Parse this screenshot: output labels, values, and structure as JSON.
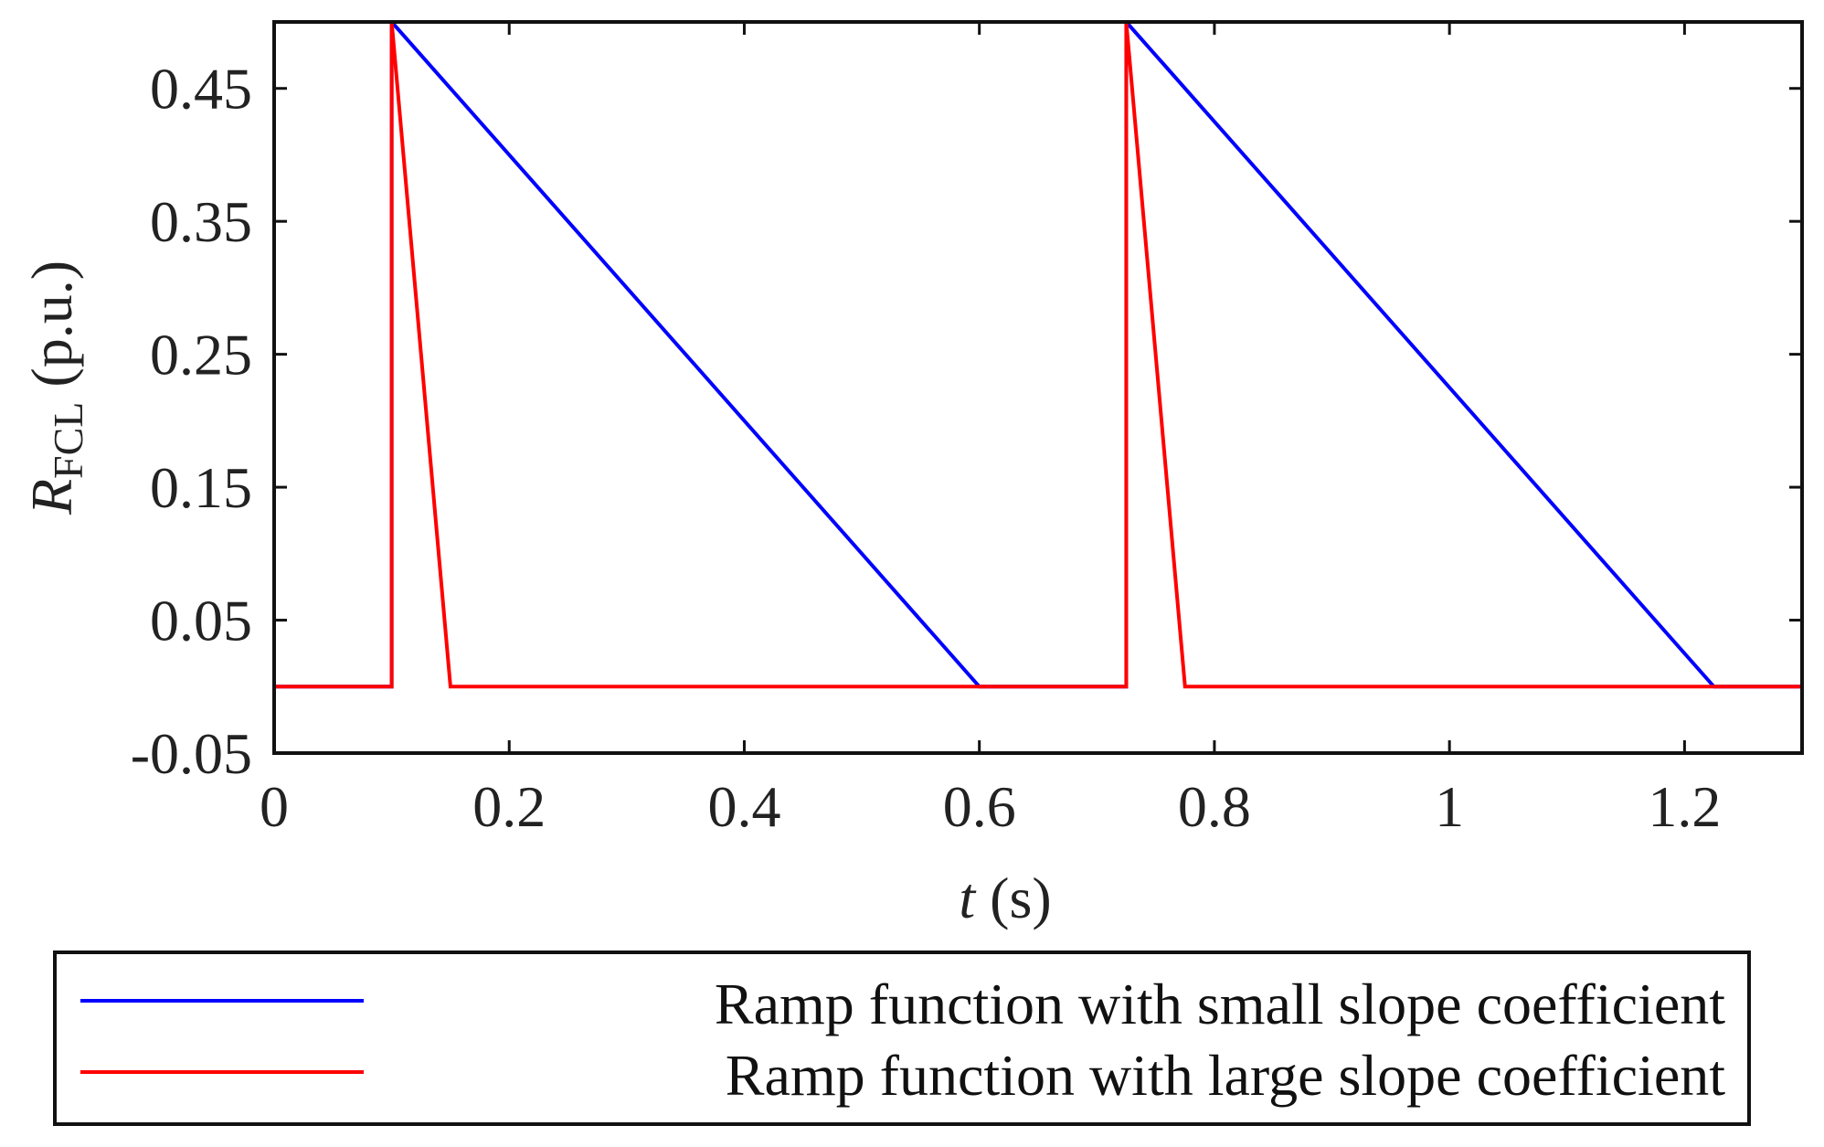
{
  "chart_data": {
    "type": "line",
    "title": "",
    "xlabel": {
      "var": "t",
      "unit": "(s)"
    },
    "ylabel": {
      "var": "R",
      "sub": "FCL",
      "unit": "(p.u.)"
    },
    "xlim": [
      0,
      1.3
    ],
    "ylim": [
      -0.05,
      0.5
    ],
    "xticks": [
      0,
      0.2,
      0.4,
      0.6,
      0.8,
      1,
      1.2
    ],
    "xtick_labels": [
      "0",
      "0.2",
      "0.4",
      "0.6",
      "0.8",
      "1",
      "1.2"
    ],
    "yticks": [
      -0.05,
      0.05,
      0.15,
      0.25,
      0.35,
      0.45
    ],
    "ytick_labels": [
      "-0.05",
      "0.05",
      "0.15",
      "0.25",
      "0.35",
      "0.45"
    ],
    "grid": false,
    "legend_position": "below",
    "series": [
      {
        "name": "Ramp function with small slope coefficient",
        "color": "#0000ff",
        "x": [
          0,
          0.1,
          0.1,
          0.6,
          0.725,
          0.725,
          1.225,
          1.3
        ],
        "y": [
          0,
          0,
          0.5,
          0,
          0,
          0.5,
          0,
          0
        ]
      },
      {
        "name": "Ramp function with large slope coefficient",
        "color": "#ff0000",
        "x": [
          0,
          0.1,
          0.1,
          0.15,
          0.725,
          0.725,
          0.775,
          1.3
        ],
        "y": [
          0,
          0,
          0.5,
          0,
          0,
          0.5,
          0,
          0
        ]
      }
    ]
  }
}
